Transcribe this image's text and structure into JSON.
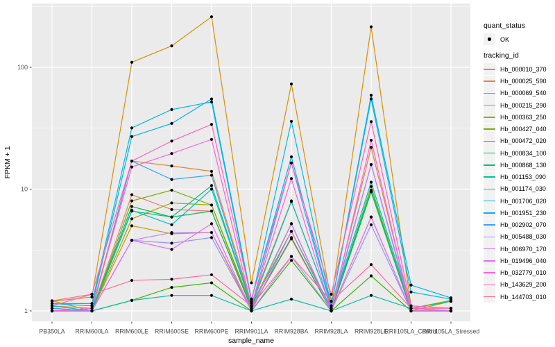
{
  "figure": {
    "background": "#FFFFFF",
    "panel_bg": "#EBEBEB",
    "gridline_color": "#FFFFFF",
    "tick_color": "#333333",
    "tick_label_color": "#4D4D4D",
    "point_color": "#000000",
    "legend_key_bg": "#F2F2F2"
  },
  "legend": {
    "quant_status_title": "quant_status",
    "quant_status_item": "OK",
    "tracking_id_title": "tracking_id"
  },
  "chart_data": {
    "type": "line",
    "title": "",
    "xlabel": "sample_name",
    "ylabel": "FPKM + 1",
    "y_scale": "log10",
    "grid": "on",
    "legend_position": "right",
    "ylim": [
      0.82,
      334
    ],
    "y_ticks": [
      1,
      10,
      100
    ],
    "y_minor_ticks": [
      3.162,
      31.62,
      316.2
    ],
    "categories": [
      "PB350LA",
      "RRIM600LA",
      "RRIM600LE",
      "RRIM600SE",
      "RRIM600PE",
      "RRIM901LA",
      "RRIM928BA",
      "RRIM928LA",
      "RRIM928LE",
      "RRII105LA_Control",
      "RRII105LA_Stressed"
    ],
    "quant_status": "OK",
    "series": [
      {
        "name": "Hb_000010_370",
        "color": "#F8766D",
        "values": [
          1.05,
          1.0,
          9.0,
          6.8,
          6.6,
          1.05,
          3.9,
          1.0,
          9.6,
          1.0,
          1.0
        ]
      },
      {
        "name": "Hb_000025_590",
        "color": "#EA8331",
        "values": [
          1.1,
          1.05,
          17.0,
          15.5,
          14.0,
          1.15,
          8.0,
          1.05,
          22.0,
          1.05,
          1.0
        ]
      },
      {
        "name": "Hb_000069_540",
        "color": "#D89000",
        "values": [
          1.2,
          1.3,
          110.0,
          150.0,
          260.0,
          1.7,
          73.0,
          1.2,
          215.0,
          1.1,
          1.05
        ]
      },
      {
        "name": "Hb_000215_290",
        "color": "#C09B00",
        "values": [
          1.0,
          1.0,
          5.0,
          4.3,
          4.4,
          1.0,
          4.5,
          1.0,
          5.9,
          1.0,
          1.2
        ]
      },
      {
        "name": "Hb_000363_250",
        "color": "#A3A500",
        "values": [
          1.21,
          1.0,
          5.7,
          7.7,
          7.4,
          1.1,
          5.2,
          1.0,
          9.8,
          1.05,
          1.22
        ]
      },
      {
        "name": "Hb_000427_040",
        "color": "#7CAE00",
        "values": [
          1.05,
          1.0,
          8.0,
          9.8,
          7.4,
          1.05,
          5.2,
          1.0,
          10.5,
          1.0,
          1.0
        ]
      },
      {
        "name": "Hb_000472_020",
        "color": "#39B600",
        "values": [
          1.0,
          1.0,
          1.22,
          1.56,
          1.7,
          1.0,
          2.6,
          1.0,
          1.94,
          1.0,
          1.0
        ]
      },
      {
        "name": "Hb_000834_100",
        "color": "#00BB4E",
        "values": [
          1.0,
          1.0,
          7.2,
          5.9,
          6.6,
          1.05,
          4.0,
          1.0,
          9.5,
          1.0,
          1.0
        ]
      },
      {
        "name": "Hb_000868_130",
        "color": "#00BF7D",
        "values": [
          1.0,
          1.0,
          6.6,
          5.9,
          10.7,
          1.1,
          4.5,
          1.05,
          9.8,
          1.0,
          1.0
        ]
      },
      {
        "name": "Hb_001153_090",
        "color": "#00C1A3",
        "values": [
          1.0,
          1.0,
          1.22,
          1.34,
          1.34,
          1.0,
          1.25,
          1.0,
          1.34,
          1.05,
          1.2
        ]
      },
      {
        "name": "Hb_001174_030",
        "color": "#00BFC4",
        "values": [
          1.1,
          1.0,
          6.7,
          5.1,
          10.0,
          1.1,
          7.9,
          1.05,
          11.4,
          1.05,
          1.0
        ]
      },
      {
        "name": "Hb_001706_020",
        "color": "#00BAE0",
        "values": [
          1.15,
          1.15,
          31.8,
          45.0,
          52.0,
          1.2,
          36.0,
          1.1,
          55.0,
          1.43,
          1.25
        ]
      },
      {
        "name": "Hb_001951_230",
        "color": "#00B0F6",
        "values": [
          1.15,
          1.1,
          27.0,
          34.6,
          55.0,
          1.25,
          18.4,
          1.1,
          59.0,
          1.63,
          1.28
        ]
      },
      {
        "name": "Hb_002902_070",
        "color": "#35A2FF",
        "values": [
          1.05,
          1.0,
          17.0,
          12.0,
          13.0,
          1.1,
          16.4,
          1.05,
          15.9,
          1.05,
          1.0
        ]
      },
      {
        "name": "Hb_005488_030",
        "color": "#9590FF",
        "values": [
          1.0,
          1.0,
          3.8,
          3.6,
          4.0,
          1.0,
          2.8,
          1.0,
          5.1,
          1.0,
          1.0
        ]
      },
      {
        "name": "Hb_006970_170",
        "color": "#C77CFF",
        "values": [
          1.0,
          1.0,
          3.8,
          4.4,
          4.4,
          1.05,
          5.2,
          1.0,
          15.9,
          1.0,
          1.0
        ]
      },
      {
        "name": "Hb_019496_040",
        "color": "#E76BF3",
        "values": [
          1.0,
          1.0,
          3.8,
          3.2,
          5.2,
          1.0,
          4.5,
          1.0,
          5.9,
          1.0,
          1.0
        ]
      },
      {
        "name": "Hb_032779_010",
        "color": "#FA62DB",
        "values": [
          1.0,
          1.05,
          15.2,
          19.6,
          25.6,
          1.1,
          12.2,
          1.0,
          25.2,
          1.0,
          1.0
        ]
      },
      {
        "name": "Hb_143629_200",
        "color": "#FF62BC",
        "values": [
          1.1,
          1.37,
          17.0,
          24.8,
          34.0,
          1.25,
          16.4,
          1.37,
          35.8,
          1.1,
          1.05
        ]
      },
      {
        "name": "Hb_144703_010",
        "color": "#FF6A98",
        "values": [
          1.21,
          1.37,
          1.78,
          1.82,
          1.98,
          1.1,
          2.8,
          1.2,
          2.4,
          1.05,
          1.05
        ]
      }
    ]
  }
}
